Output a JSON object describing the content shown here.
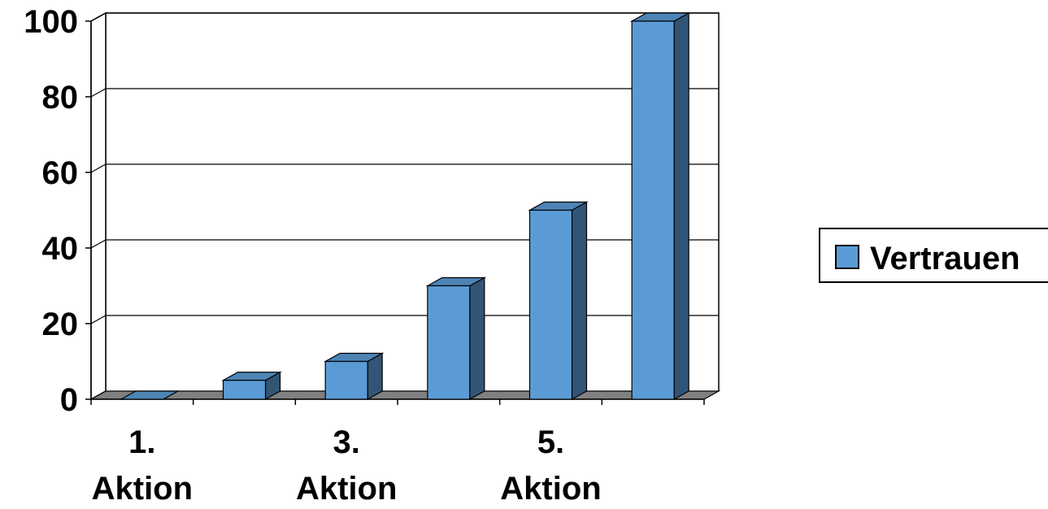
{
  "chart_data": {
    "type": "bar",
    "style": "3d-column",
    "categories": [
      "1. Aktion",
      "",
      "3. Aktion",
      "",
      "5. Aktion",
      ""
    ],
    "category_label_lines": [
      [
        "1.",
        "Aktion"
      ],
      [],
      [
        "3.",
        "Aktion"
      ],
      [],
      [
        "5.",
        "Aktion"
      ],
      []
    ],
    "series": [
      {
        "name": "Vertrauen",
        "values": [
          0,
          5,
          10,
          30,
          50,
          100
        ],
        "color": "#5B9BD5"
      }
    ],
    "ylim": [
      0,
      100
    ],
    "yticks": [
      0,
      20,
      40,
      60,
      80,
      100
    ],
    "ytick_labels": [
      "0",
      "20",
      "40",
      "60",
      "80",
      "100"
    ],
    "grid": true,
    "legend_position": "right"
  }
}
